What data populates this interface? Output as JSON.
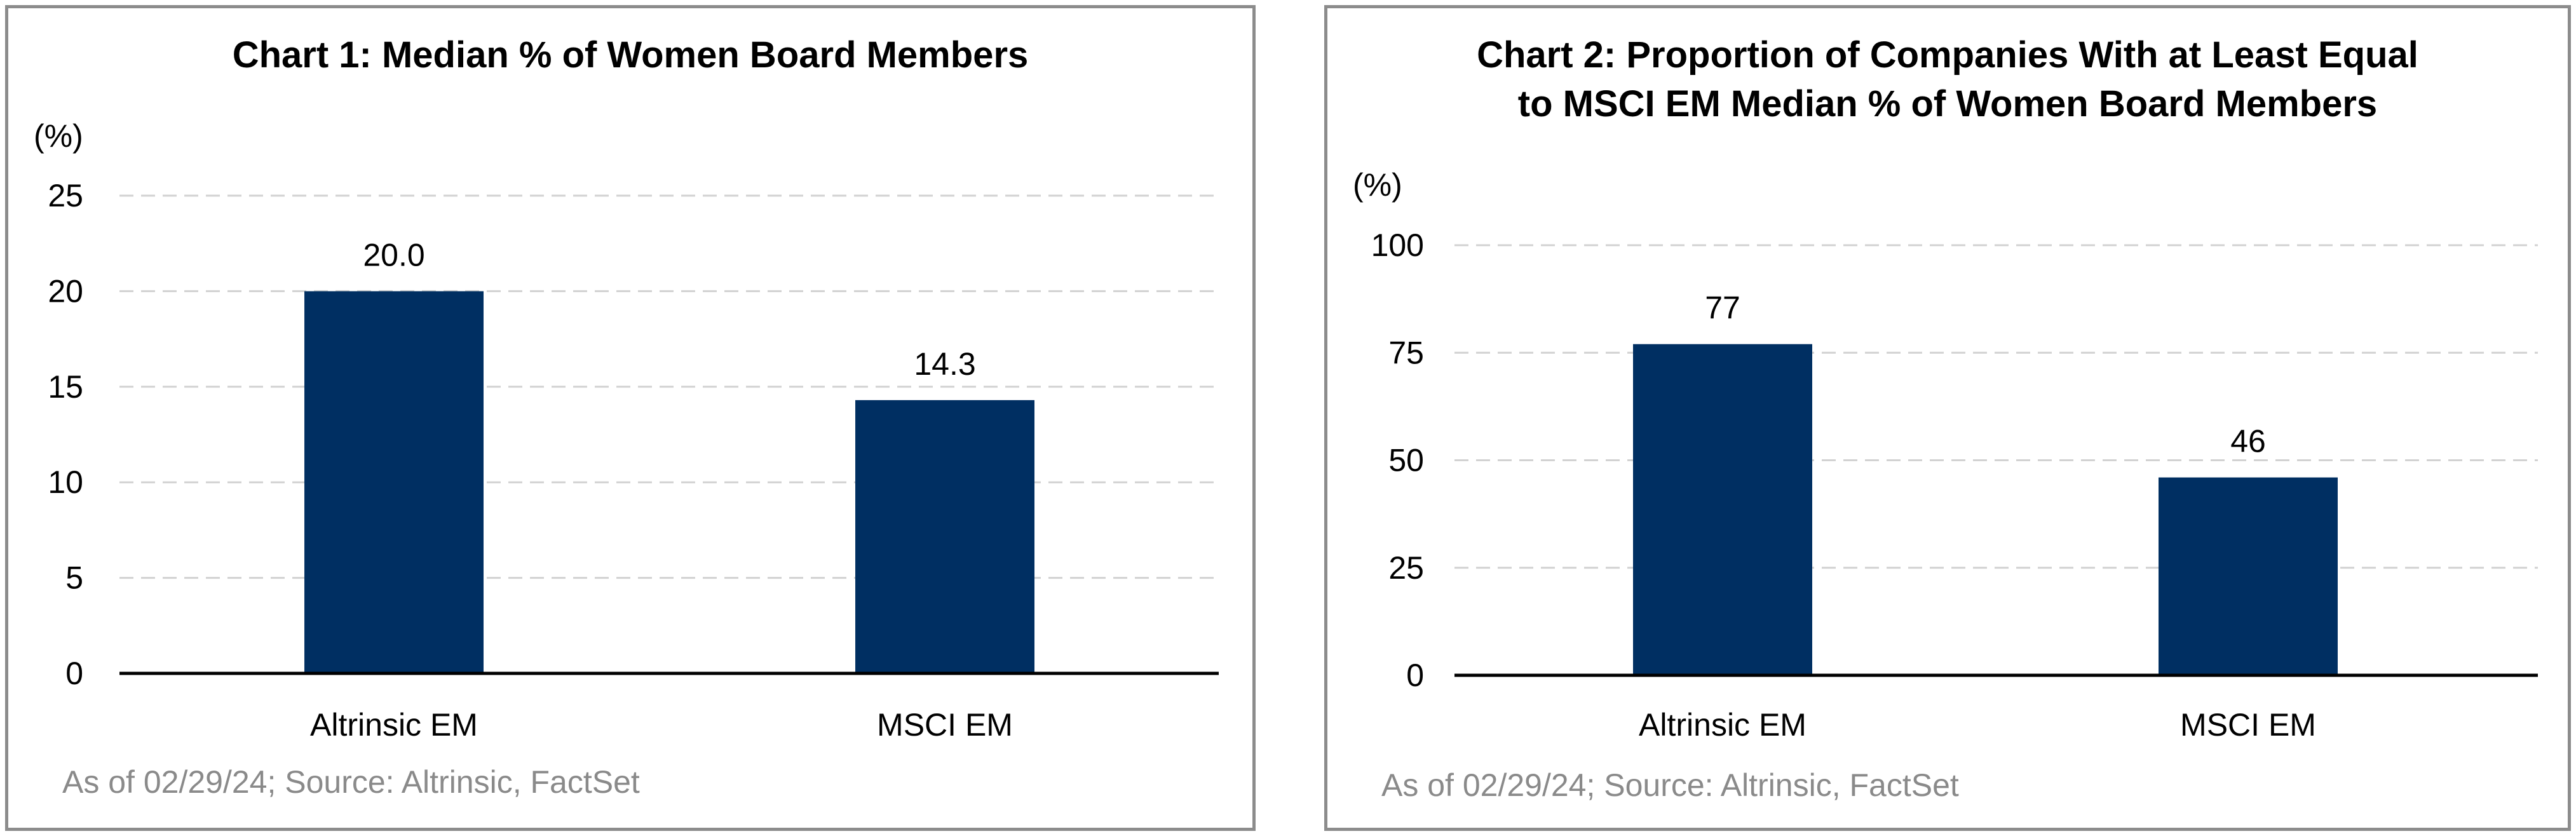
{
  "chart_data": [
    {
      "type": "bar",
      "title": "Chart 1: Median % of Women Board Members",
      "ylabel": "(%)",
      "categories": [
        "Altrinsic EM",
        "MSCI EM"
      ],
      "values": [
        20.0,
        14.3
      ],
      "value_labels": [
        "20.0",
        "14.3"
      ],
      "ylim": [
        0,
        25
      ],
      "yticks": [
        0,
        5,
        10,
        15,
        20,
        25
      ],
      "grid": true,
      "bar_color": "#002f62",
      "source": "As of 02/29/24; Source: Altrinsic, FactSet"
    },
    {
      "type": "bar",
      "title": "Chart 2: Proportion of Companies With at Least Equal to MSCI EM Median % of Women Board Members",
      "title_lines": [
        "Chart 2: Proportion of Companies With at Least Equal",
        "to MSCI EM Median % of Women Board Members"
      ],
      "ylabel": "(%)",
      "categories": [
        "Altrinsic EM",
        "MSCI EM"
      ],
      "values": [
        77,
        46
      ],
      "value_labels": [
        "77",
        "46"
      ],
      "ylim": [
        0,
        100
      ],
      "yticks": [
        0,
        25,
        50,
        75,
        100
      ],
      "grid": true,
      "bar_color": "#002f62",
      "source": "As of 02/29/24; Source: Altrinsic, FactSet"
    }
  ]
}
